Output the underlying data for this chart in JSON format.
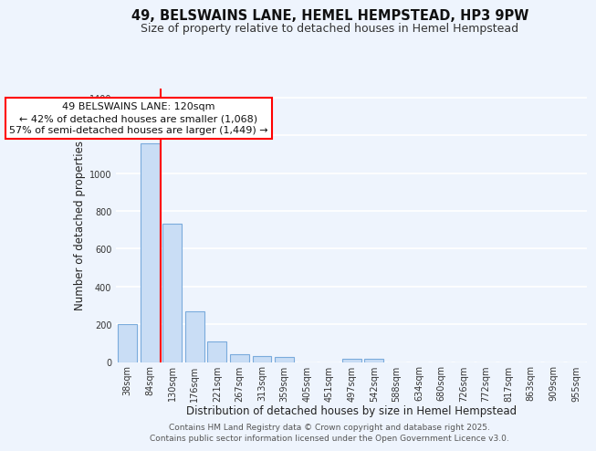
{
  "title": "49, BELSWAINS LANE, HEMEL HEMPSTEAD, HP3 9PW",
  "subtitle": "Size of property relative to detached houses in Hemel Hempstead",
  "xlabel": "Distribution of detached houses by size in Hemel Hempstead",
  "ylabel": "Number of detached properties",
  "footer_line1": "Contains HM Land Registry data © Crown copyright and database right 2025.",
  "footer_line2": "Contains public sector information licensed under the Open Government Licence v3.0.",
  "categories": [
    "38sqm",
    "84sqm",
    "130sqm",
    "176sqm",
    "221sqm",
    "267sqm",
    "313sqm",
    "359sqm",
    "405sqm",
    "451sqm",
    "497sqm",
    "542sqm",
    "588sqm",
    "634sqm",
    "680sqm",
    "726sqm",
    "772sqm",
    "817sqm",
    "863sqm",
    "909sqm",
    "955sqm"
  ],
  "values": [
    200,
    1160,
    730,
    270,
    110,
    40,
    30,
    25,
    0,
    0,
    15,
    15,
    0,
    0,
    0,
    0,
    0,
    0,
    0,
    0,
    0
  ],
  "bar_color": "#c9ddf5",
  "bar_edge_color": "#7aabdc",
  "red_line_x": 1.5,
  "annotation_title": "49 BELSWAINS LANE: 120sqm",
  "annotation_line1": "← 42% of detached houses are smaller (1,068)",
  "annotation_line2": "57% of semi-detached houses are larger (1,449) →",
  "ylim": [
    0,
    1450
  ],
  "yticks": [
    0,
    200,
    400,
    600,
    800,
    1000,
    1200,
    1400
  ],
  "background_color": "#eef4fd",
  "grid_color": "#ffffff",
  "title_fontsize": 10.5,
  "subtitle_fontsize": 9,
  "axis_label_fontsize": 8.5,
  "tick_fontsize": 7,
  "annotation_fontsize": 8,
  "footer_fontsize": 6.5
}
